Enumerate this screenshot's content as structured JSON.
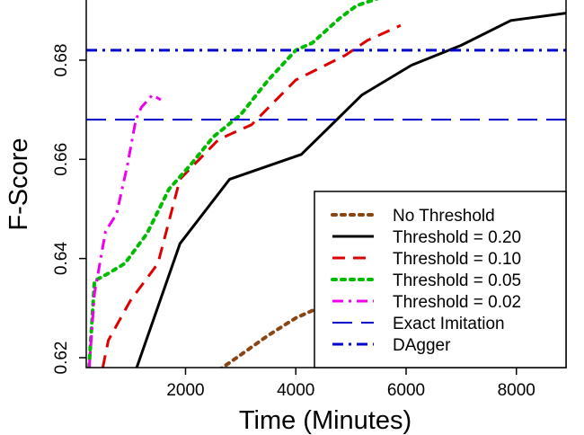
{
  "chart_data": {
    "type": "line",
    "title": "",
    "xlabel": "Time (Minutes)",
    "ylabel": "F-Score",
    "xlim": [
      200,
      8900
    ],
    "ylim": [
      0.618,
      0.6925
    ],
    "x_ticks": [
      2000,
      4000,
      6000,
      8000
    ],
    "x_tick_labels": [
      "2000",
      "4000",
      "6000",
      "8000"
    ],
    "y_ticks": [
      0.62,
      0.64,
      0.66,
      0.68
    ],
    "y_tick_labels": [
      "0.62",
      "0.64",
      "0.66",
      "0.68"
    ],
    "grid": false,
    "legend_position": "bottom-right",
    "series": [
      {
        "name": "No Threshold",
        "color": "#8B4513",
        "dash": "dotted",
        "x": [
          2600,
          2800,
          3500,
          4000,
          4300
        ],
        "y": [
          0.6175,
          0.619,
          0.6245,
          0.628,
          0.6295
        ]
      },
      {
        "name": "Threshold = 0.20",
        "color": "#000000",
        "dash": "solid",
        "x": [
          1100,
          1900,
          2800,
          4100,
          5200,
          6100,
          7000,
          7900,
          8900
        ],
        "y": [
          0.6175,
          0.643,
          0.656,
          0.661,
          0.673,
          0.679,
          0.683,
          0.688,
          0.6895
        ]
      },
      {
        "name": "Threshold = 0.10",
        "color": "#DD0000",
        "dash": "dashed",
        "x": [
          500,
          600,
          1000,
          1500,
          1900,
          2600,
          3200,
          4000,
          4900,
          5300,
          5900
        ],
        "y": [
          0.618,
          0.6235,
          0.6315,
          0.639,
          0.656,
          0.664,
          0.667,
          0.676,
          0.681,
          0.684,
          0.687
        ]
      },
      {
        "name": "Threshold = 0.05",
        "color": "#00BB00",
        "dash": "dotted",
        "x": [
          250,
          350,
          600,
          900,
          1300,
          1700,
          2100,
          2500,
          3000,
          3500,
          4000,
          4300,
          4800,
          5100,
          5500
        ],
        "y": [
          0.618,
          0.6355,
          0.637,
          0.639,
          0.645,
          0.654,
          0.659,
          0.6645,
          0.669,
          0.676,
          0.682,
          0.6835,
          0.6885,
          0.691,
          0.6925
        ]
      },
      {
        "name": "Threshold = 0.02",
        "color": "#EE00EE",
        "dash": "dashdot",
        "x": [
          250,
          350,
          550,
          750,
          950,
          1100,
          1200,
          1400,
          1550
        ],
        "y": [
          0.6175,
          0.633,
          0.6455,
          0.649,
          0.659,
          0.668,
          0.6705,
          0.673,
          0.672
        ]
      },
      {
        "name": "Exact Imitation",
        "color": "#0000CC",
        "dash": "longdash",
        "hline": 0.668
      },
      {
        "name": "DAgger",
        "color": "#0000CC",
        "dash": "dashdot",
        "hline": 0.682
      }
    ]
  }
}
